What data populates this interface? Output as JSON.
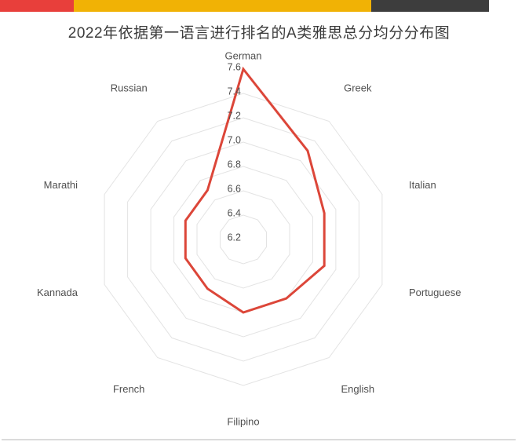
{
  "page": {
    "title": "2022年依据第一语言进行排名的A类雅思总分均分分布图"
  },
  "decor": {
    "top_bar_segments": [
      {
        "name": "red",
        "color": "#e83f3b"
      },
      {
        "name": "gold",
        "color": "#f1b205"
      },
      {
        "name": "dark",
        "color": "#3d3d3d"
      }
    ],
    "bottom_rule_color": "#dbdbdb"
  },
  "chart_data": {
    "type": "radar",
    "title": "2022年依据第一语言进行排名的A类雅思总分均分分布图",
    "categories": [
      "German",
      "Greek",
      "Italian",
      "Portuguese",
      "English",
      "Filipino",
      "French",
      "Kannada",
      "Marathi",
      "Russian"
    ],
    "series": [
      {
        "values": [
          7.6,
          7.1,
          6.9,
          6.9,
          6.8,
          6.8,
          6.7,
          6.7,
          6.7,
          6.7
        ],
        "color": "#dc4639"
      }
    ],
    "scale": {
      "center_value": 6.2,
      "max_value": 7.6,
      "step": 0.2,
      "ring_values": [
        6.4,
        6.6,
        6.8,
        7.0,
        7.2,
        7.4
      ],
      "tick_labels": [
        "6.2",
        "6.4",
        "6.6",
        "6.8",
        "7.0",
        "7.2",
        "7.4",
        "7.6"
      ]
    },
    "grid": {
      "shape": "decagon",
      "color": "#e3e3e3",
      "radial_spokes": false
    },
    "colors": {
      "axis_label": "#4f4f4f",
      "tick_label": "#4f4f4f"
    },
    "legend": {
      "visible": false
    }
  }
}
